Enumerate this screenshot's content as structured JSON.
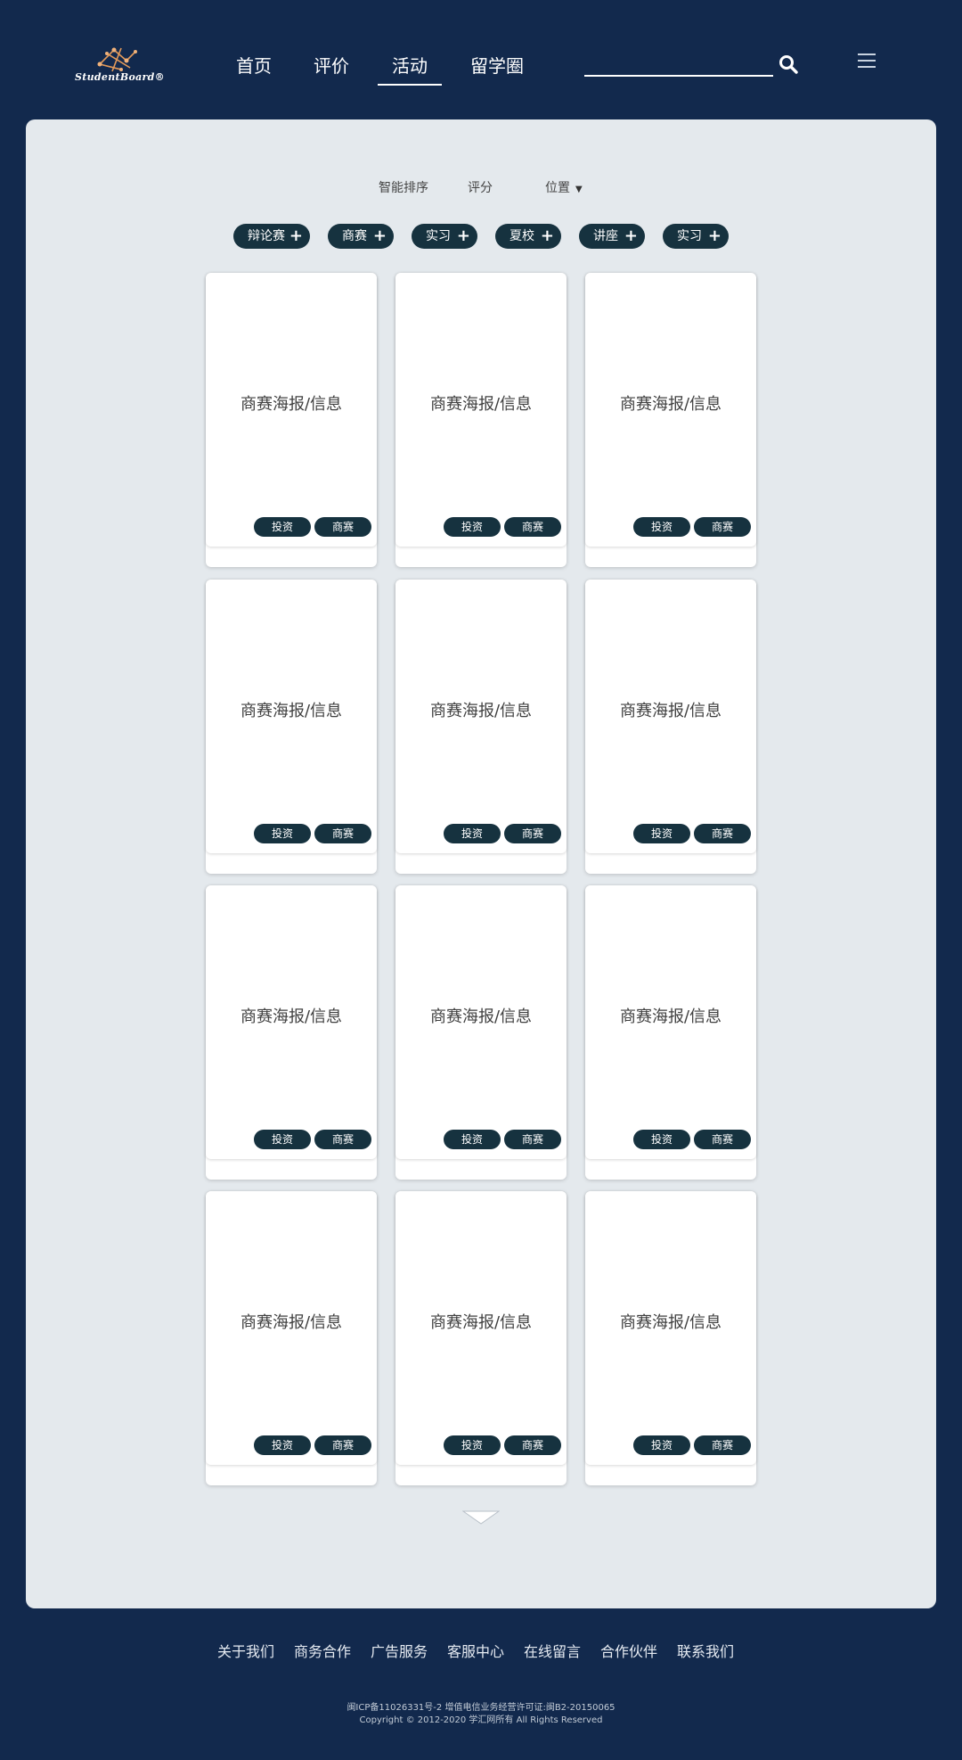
{
  "header": {
    "logo_text": "StudentBoard®",
    "nav": [
      {
        "label": "首页"
      },
      {
        "label": "评价"
      },
      {
        "label": "活动",
        "active": true
      },
      {
        "label": "留学圈"
      }
    ],
    "search": {
      "placeholder": ""
    },
    "icons": {
      "search": "search-icon",
      "menu": "menu-icon",
      "logo": "logo-icon"
    }
  },
  "filters": {
    "sort_options": [
      {
        "label": "智能排序"
      },
      {
        "label": "评分"
      },
      {
        "label": "位置",
        "has_dropdown": true
      }
    ],
    "tags": [
      {
        "label": "辩论赛"
      },
      {
        "label": "商赛"
      },
      {
        "label": "实习"
      },
      {
        "label": "夏校"
      },
      {
        "label": "讲座"
      },
      {
        "label": "实习"
      }
    ],
    "plus_symbol": "+"
  },
  "cards": [
    {
      "title": "商赛海报/信息",
      "tags": [
        "投资",
        "商赛"
      ]
    },
    {
      "title": "商赛海报/信息",
      "tags": [
        "投资",
        "商赛"
      ]
    },
    {
      "title": "商赛海报/信息",
      "tags": [
        "投资",
        "商赛"
      ]
    },
    {
      "title": "商赛海报/信息",
      "tags": [
        "投资",
        "商赛"
      ]
    },
    {
      "title": "商赛海报/信息",
      "tags": [
        "投资",
        "商赛"
      ]
    },
    {
      "title": "商赛海报/信息",
      "tags": [
        "投资",
        "商赛"
      ]
    },
    {
      "title": "商赛海报/信息",
      "tags": [
        "投资",
        "商赛"
      ]
    },
    {
      "title": "商赛海报/信息",
      "tags": [
        "投资",
        "商赛"
      ]
    },
    {
      "title": "商赛海报/信息",
      "tags": [
        "投资",
        "商赛"
      ]
    },
    {
      "title": "商赛海报/信息",
      "tags": [
        "投资",
        "商赛"
      ]
    },
    {
      "title": "商赛海报/信息",
      "tags": [
        "投资",
        "商赛"
      ]
    },
    {
      "title": "商赛海报/信息",
      "tags": [
        "投资",
        "商赛"
      ]
    }
  ],
  "footer": {
    "links": [
      {
        "label": "关于我们"
      },
      {
        "label": "商务合作"
      },
      {
        "label": "广告服务"
      },
      {
        "label": "客服中心"
      },
      {
        "label": "在线留言"
      },
      {
        "label": "合作伙伴"
      },
      {
        "label": "联系我们"
      }
    ],
    "icp": "闽ICP备11026331号-2 增值电信业务经营许可证:闽B2-20150065",
    "copyright": "Copyright © 2012-2020 学汇网所有 All Rights Reserved"
  },
  "colors": {
    "background": "#12294d",
    "panel": "#e4e9ed",
    "pill": "#16323f",
    "card": "#ffffff"
  }
}
